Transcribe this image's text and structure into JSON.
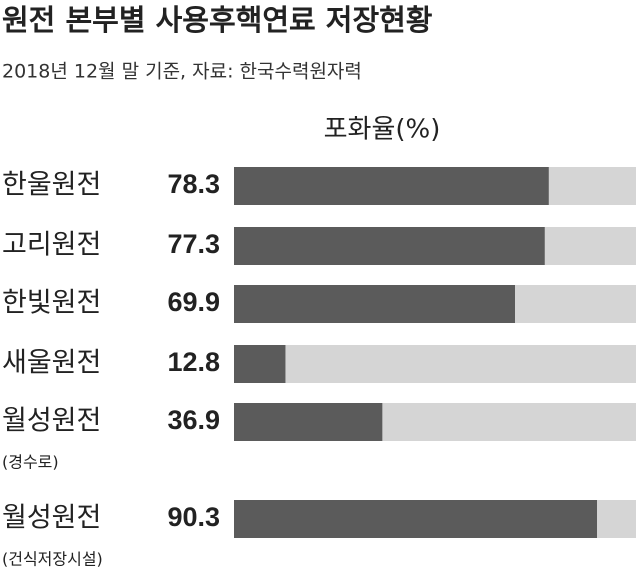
{
  "chart_data": {
    "type": "bar",
    "title": "원전 본부별 사용후핵연료 저장현황",
    "subtitle": "2018년 12월 말 기준, 자료: 한국수력원자력",
    "x_label": "포화율(%)",
    "categories": [
      "한울원전",
      "고리원전",
      "한빛원전",
      "새울원전",
      "월성원전",
      "월성원전"
    ],
    "category_notes": [
      null,
      null,
      null,
      null,
      "(경수로)",
      "(건식저장시설)"
    ],
    "values": [
      78.3,
      77.3,
      69.9,
      12.8,
      36.9,
      90.3
    ],
    "color": "#5b5b5b",
    "track_color": "#d5d5d5",
    "xlim": [
      0,
      100
    ]
  }
}
